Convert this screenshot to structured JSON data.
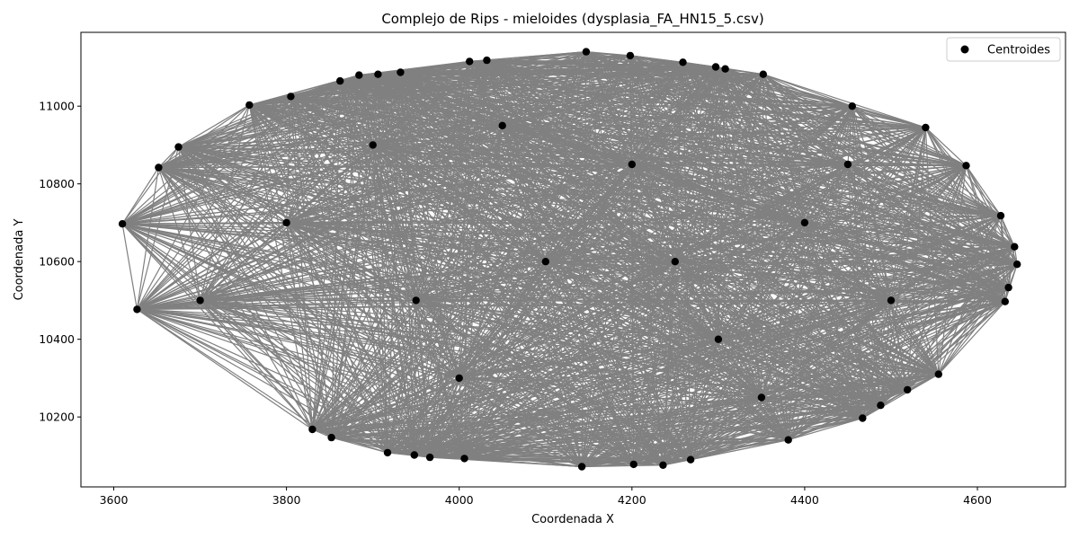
{
  "chart_data": {
    "type": "scatter",
    "title": "Complejo de Rips - mieloides (dysplasia_FA_HN15_5.csv)",
    "xlabel": "Coordenada X",
    "ylabel": "Coordenada Y",
    "xlim": [
      3562,
      4702
    ],
    "ylim": [
      10020,
      11190
    ],
    "x_ticks": [
      3600,
      3800,
      4000,
      4200,
      4400,
      4600
    ],
    "y_ticks": [
      10200,
      10400,
      10600,
      10800,
      11000
    ],
    "grid": false,
    "legend": {
      "placement": "top-right",
      "entries": [
        "Centroides"
      ]
    },
    "edge_color": "#808080",
    "point_color": "#000000",
    "series": [
      {
        "name": "Centroides",
        "points": [
          [
            3610,
            10697
          ],
          [
            3627,
            10477
          ],
          [
            3652,
            10842
          ],
          [
            3675,
            10895
          ],
          [
            3757,
            11003
          ],
          [
            3805,
            11025
          ],
          [
            3862,
            11065
          ],
          [
            3884,
            11080
          ],
          [
            3906,
            11082
          ],
          [
            3932,
            11087
          ],
          [
            4012,
            11115
          ],
          [
            4032,
            11118
          ],
          [
            4147,
            11140
          ],
          [
            4198,
            11130
          ],
          [
            4259,
            11113
          ],
          [
            4297,
            11101
          ],
          [
            4308,
            11096
          ],
          [
            4352,
            11082
          ],
          [
            4455,
            11000
          ],
          [
            4540,
            10945
          ],
          [
            4587,
            10847
          ],
          [
            4627,
            10718
          ],
          [
            4643,
            10638
          ],
          [
            4646,
            10593
          ],
          [
            4636,
            10533
          ],
          [
            4632,
            10497
          ],
          [
            4555,
            10310
          ],
          [
            4519,
            10270
          ],
          [
            4488,
            10230
          ],
          [
            4467,
            10197
          ],
          [
            4381,
            10141
          ],
          [
            4268,
            10090
          ],
          [
            4236,
            10076
          ],
          [
            4202,
            10078
          ],
          [
            4142,
            10072
          ],
          [
            4006,
            10093
          ],
          [
            3966,
            10096
          ],
          [
            3948,
            10102
          ],
          [
            3917,
            10108
          ],
          [
            3852,
            10147
          ],
          [
            3830,
            10168
          ],
          [
            3700,
            10500
          ],
          [
            3800,
            10700
          ],
          [
            3900,
            10900
          ],
          [
            4000,
            10300
          ],
          [
            4100,
            10600
          ],
          [
            4200,
            10850
          ],
          [
            4300,
            10400
          ],
          [
            4400,
            10700
          ],
          [
            4500,
            10500
          ],
          [
            4350,
            10250
          ],
          [
            4050,
            10950
          ],
          [
            3950,
            10500
          ],
          [
            4250,
            10600
          ],
          [
            4450,
            10850
          ]
        ]
      }
    ]
  }
}
